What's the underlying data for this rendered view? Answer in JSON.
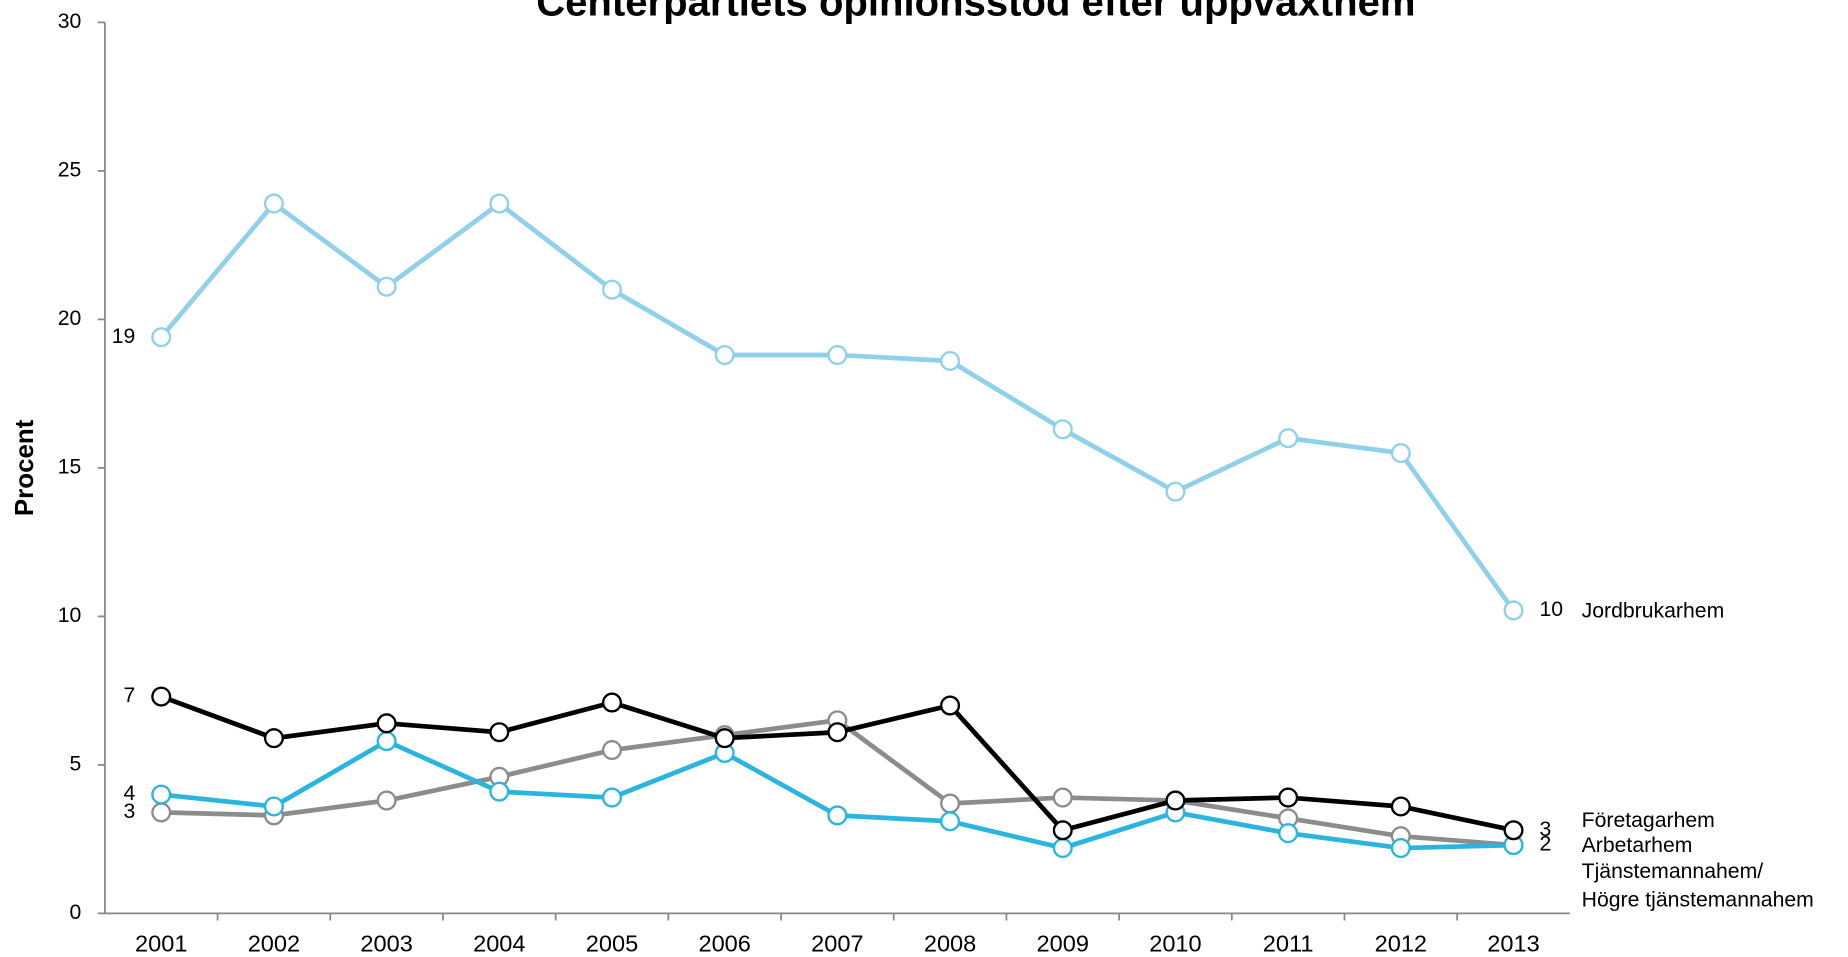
{
  "chart_data": {
    "type": "line",
    "title": "Centerpartiets opinionsstöd efter uppväxthem",
    "y_label": "Procent",
    "categories": [
      "2001",
      "2002",
      "2003",
      "2004",
      "2005",
      "2006",
      "2007",
      "2008",
      "2009",
      "2010",
      "2011",
      "2012",
      "2013"
    ],
    "ylim": [
      0,
      30
    ],
    "yticks": [
      0,
      5,
      10,
      15,
      20,
      25,
      30
    ],
    "series": [
      {
        "name": "Jordbrukarhem",
        "color": "#8fd0ea",
        "values": [
          19.4,
          23.9,
          21.1,
          23.9,
          21.0,
          18.8,
          18.8,
          18.6,
          16.3,
          14.2,
          16.0,
          15.5,
          10.2
        ],
        "value_labels": [
          "19",
          null,
          null,
          null,
          null,
          null,
          null,
          null,
          null,
          null,
          null,
          null,
          "10"
        ]
      },
      {
        "name": "Arbetarhem",
        "color": "#8c8c8c",
        "values": [
          3.4,
          3.3,
          3.8,
          4.6,
          5.5,
          6.0,
          6.5,
          3.7,
          3.9,
          3.8,
          3.2,
          2.6,
          2.3
        ],
        "value_labels": [
          "3",
          null,
          null,
          null,
          null,
          null,
          null,
          null,
          null,
          null,
          null,
          null,
          "2"
        ]
      },
      {
        "name": "Tjänstemannahem/ Högre tjänstemannahem",
        "color": "#29b5e0",
        "values": [
          4.0,
          3.6,
          5.8,
          4.1,
          3.9,
          5.4,
          3.3,
          3.1,
          2.2,
          3.4,
          2.7,
          2.2,
          2.3
        ],
        "value_labels": [
          "4",
          null,
          null,
          null,
          null,
          null,
          null,
          null,
          null,
          null,
          null,
          null,
          null
        ]
      },
      {
        "name": "Företagarhem",
        "color": "#000000",
        "values": [
          7.3,
          5.9,
          6.4,
          6.1,
          7.1,
          5.9,
          6.1,
          7.0,
          2.8,
          3.8,
          3.9,
          3.6,
          2.8
        ],
        "value_labels": [
          "7",
          null,
          null,
          null,
          null,
          null,
          null,
          null,
          null,
          null,
          null,
          null,
          "3"
        ]
      }
    ]
  }
}
